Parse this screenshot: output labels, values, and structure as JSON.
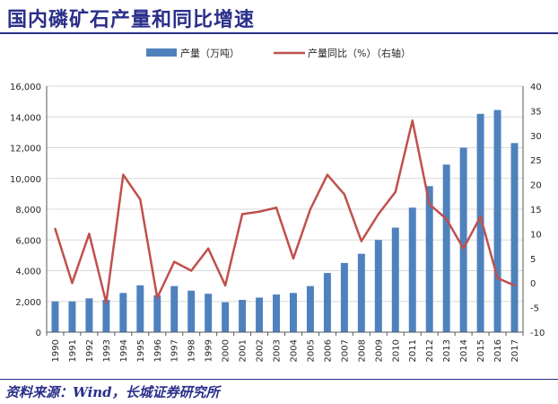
{
  "header": {
    "title": "国内磷矿石产量和同比增速"
  },
  "footer": {
    "source": "资料来源：Wind，长城证券研究所"
  },
  "colors": {
    "bar": "#4f81bd",
    "line": "#c0504d",
    "title": "#2a2f8a",
    "axis": "#595959",
    "grid": "#d9d9d9"
  },
  "chart_data": {
    "type": "bar+line",
    "title": "",
    "categories": [
      "1990",
      "1991",
      "1992",
      "1993",
      "1994",
      "1995",
      "1996",
      "1997",
      "1998",
      "1999",
      "2000",
      "2001",
      "2002",
      "2003",
      "2004",
      "2005",
      "2006",
      "2007",
      "2008",
      "2009",
      "2010",
      "2011",
      "2012",
      "2013",
      "2014",
      "2015",
      "2016",
      "2017"
    ],
    "legend_position": "top-center",
    "grid": {
      "horizontal": true,
      "vertical": false
    },
    "y_left": {
      "ylim": [
        0,
        16000
      ],
      "ticks": [
        "0",
        "2,000",
        "4,000",
        "6,000",
        "8,000",
        "10,000",
        "12,000",
        "14,000",
        "16,000"
      ]
    },
    "y_right": {
      "ylim": [
        -10,
        40
      ],
      "ticks": [
        "-10",
        "-5",
        "0",
        "5",
        "10",
        "15",
        "20",
        "25",
        "30",
        "35",
        "40"
      ]
    },
    "series": [
      {
        "name": "产量（万吨）",
        "type": "bar",
        "axis": "left",
        "values": [
          2000,
          2000,
          2200,
          2100,
          2550,
          3050,
          2400,
          3000,
          2700,
          2500,
          1950,
          2100,
          2250,
          2450,
          2550,
          3000,
          3850,
          4500,
          5100,
          6000,
          6800,
          8100,
          9500,
          10900,
          12000,
          14200,
          14450,
          12300
        ]
      },
      {
        "name": "产量同比（%）（右轴）",
        "type": "line",
        "axis": "right",
        "values": [
          11,
          0,
          10,
          -4,
          22,
          17,
          -3,
          4.3,
          2.5,
          7,
          -0.5,
          14,
          14.5,
          15.3,
          5,
          15,
          22,
          18,
          8.5,
          14,
          18.5,
          33,
          16,
          13,
          7,
          13.5,
          1,
          -0.5
        ]
      }
    ]
  }
}
